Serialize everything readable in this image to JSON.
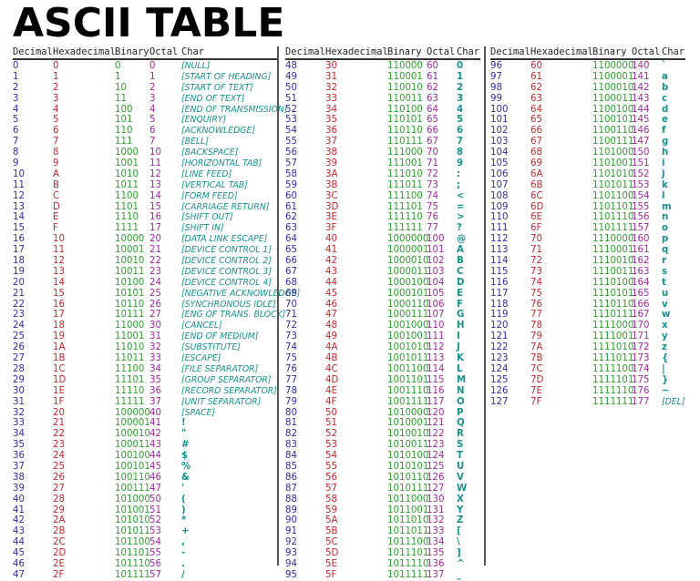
{
  "title": "ASCII TABLE",
  "headers": {
    "decimal": "Decimal",
    "hex": "Hexadecimal",
    "binary": "Binary",
    "octal": "Octal",
    "char": "Char"
  },
  "colors": {
    "decimal": "#2e2e9e",
    "hex": "#c0282d",
    "binary": "#2f9c2f",
    "octal": "#a0289e",
    "char": "#17908f"
  },
  "sections": [
    {
      "rows": [
        [
          "0",
          "0",
          "0",
          "0",
          "[NULL]"
        ],
        [
          "1",
          "1",
          "1",
          "1",
          "[START OF HEADING]"
        ],
        [
          "2",
          "2",
          "10",
          "2",
          "[START OF TEXT]"
        ],
        [
          "3",
          "3",
          "11",
          "3",
          "[END OF TEXT]"
        ],
        [
          "4",
          "4",
          "100",
          "4",
          "[END OF TRANSMISSION]"
        ],
        [
          "5",
          "5",
          "101",
          "5",
          "[ENQUIRY]"
        ],
        [
          "6",
          "6",
          "110",
          "6",
          "[ACKNOWLEDGE]"
        ],
        [
          "7",
          "7",
          "111",
          "7",
          "[BELL]"
        ],
        [
          "8",
          "8",
          "1000",
          "10",
          "[BACKSPACE]"
        ],
        [
          "9",
          "9",
          "1001",
          "11",
          "[HORIZONTAL TAB]"
        ],
        [
          "10",
          "A",
          "1010",
          "12",
          "[LINE FEED]"
        ],
        [
          "11",
          "B",
          "1011",
          "13",
          "[VERTICAL TAB]"
        ],
        [
          "12",
          "C",
          "1100",
          "14",
          "[FORM FEED]"
        ],
        [
          "13",
          "D",
          "1101",
          "15",
          "[CARRIAGE RETURN]"
        ],
        [
          "14",
          "E",
          "1110",
          "16",
          "[SHIFT OUT]"
        ],
        [
          "15",
          "F",
          "1111",
          "17",
          "[SHIFT IN]"
        ],
        [
          "16",
          "10",
          "10000",
          "20",
          "[DATA LINK ESCAPE]"
        ],
        [
          "17",
          "11",
          "10001",
          "21",
          "[DEVICE CONTROL 1]"
        ],
        [
          "18",
          "12",
          "10010",
          "22",
          "[DEVICE CONTROL 2]"
        ],
        [
          "19",
          "13",
          "10011",
          "23",
          "[DEVICE CONTROL 3]"
        ],
        [
          "20",
          "14",
          "10100",
          "24",
          "[DEVICE CONTROL 4]"
        ],
        [
          "21",
          "15",
          "10101",
          "25",
          "[NEGATIVE ACKNOWLEDGE]"
        ],
        [
          "22",
          "16",
          "10110",
          "26",
          "[SYNCHRONOUS IDLE]"
        ],
        [
          "23",
          "17",
          "10111",
          "27",
          "[ENG OF TRANS. BLOCK]"
        ],
        [
          "24",
          "18",
          "11000",
          "30",
          "[CANCEL]"
        ],
        [
          "25",
          "19",
          "11001",
          "31",
          "[END OF MEDIUM]"
        ],
        [
          "26",
          "1A",
          "11010",
          "32",
          "[SUBSTITUTE]"
        ],
        [
          "27",
          "1B",
          "11011",
          "33",
          "[ESCAPE]"
        ],
        [
          "28",
          "1C",
          "11100",
          "34",
          "[FILE SEPARATOR]"
        ],
        [
          "29",
          "1D",
          "11101",
          "35",
          "[GROUP SEPARATOR]"
        ],
        [
          "30",
          "1E",
          "11110",
          "36",
          "[RECORD SEPARATOR]"
        ],
        [
          "31",
          "1F",
          "11111",
          "37",
          "[UNIT SEPARATOR]"
        ],
        [
          "32",
          "20",
          "100000",
          "40",
          "[SPACE]"
        ],
        [
          "33",
          "21",
          "100001",
          "41",
          "!"
        ],
        [
          "34",
          "22",
          "100010",
          "42",
          "\""
        ],
        [
          "35",
          "23",
          "100011",
          "43",
          "#"
        ],
        [
          "36",
          "24",
          "100100",
          "44",
          "$"
        ],
        [
          "37",
          "25",
          "100101",
          "45",
          "%"
        ],
        [
          "38",
          "26",
          "100110",
          "46",
          "&"
        ],
        [
          "39",
          "27",
          "100111",
          "47",
          "'"
        ],
        [
          "40",
          "28",
          "101000",
          "50",
          "("
        ],
        [
          "41",
          "29",
          "101001",
          "51",
          ")"
        ],
        [
          "42",
          "2A",
          "101010",
          "52",
          "*"
        ],
        [
          "43",
          "2B",
          "101011",
          "53",
          "+"
        ],
        [
          "44",
          "2C",
          "101100",
          "54",
          ","
        ],
        [
          "45",
          "2D",
          "101101",
          "55",
          "-"
        ],
        [
          "46",
          "2E",
          "101110",
          "56",
          "."
        ],
        [
          "47",
          "2F",
          "101111",
          "57",
          "/"
        ]
      ]
    },
    {
      "rows": [
        [
          "48",
          "30",
          "110000",
          "60",
          "0"
        ],
        [
          "49",
          "31",
          "110001",
          "61",
          "1"
        ],
        [
          "50",
          "32",
          "110010",
          "62",
          "2"
        ],
        [
          "51",
          "33",
          "110011",
          "63",
          "3"
        ],
        [
          "52",
          "34",
          "110100",
          "64",
          "4"
        ],
        [
          "53",
          "35",
          "110101",
          "65",
          "5"
        ],
        [
          "54",
          "36",
          "110110",
          "66",
          "6"
        ],
        [
          "55",
          "37",
          "110111",
          "67",
          "7"
        ],
        [
          "56",
          "38",
          "111000",
          "70",
          "8"
        ],
        [
          "57",
          "39",
          "111001",
          "71",
          "9"
        ],
        [
          "58",
          "3A",
          "111010",
          "72",
          ":"
        ],
        [
          "59",
          "3B",
          "111011",
          "73",
          ";"
        ],
        [
          "60",
          "3C",
          "111100",
          "74",
          "<"
        ],
        [
          "61",
          "3D",
          "111101",
          "75",
          "="
        ],
        [
          "62",
          "3E",
          "111110",
          "76",
          ">"
        ],
        [
          "63",
          "3F",
          "111111",
          "77",
          "?"
        ],
        [
          "64",
          "40",
          "1000000",
          "100",
          "@"
        ],
        [
          "65",
          "41",
          "1000001",
          "101",
          "A"
        ],
        [
          "66",
          "42",
          "1000010",
          "102",
          "B"
        ],
        [
          "67",
          "43",
          "1000011",
          "103",
          "C"
        ],
        [
          "68",
          "44",
          "1000100",
          "104",
          "D"
        ],
        [
          "69",
          "45",
          "1000101",
          "105",
          "E"
        ],
        [
          "70",
          "46",
          "1000110",
          "106",
          "F"
        ],
        [
          "71",
          "47",
          "1000111",
          "107",
          "G"
        ],
        [
          "72",
          "48",
          "1001000",
          "110",
          "H"
        ],
        [
          "73",
          "49",
          "1001001",
          "111",
          "I"
        ],
        [
          "74",
          "4A",
          "1001010",
          "112",
          "J"
        ],
        [
          "75",
          "4B",
          "1001011",
          "113",
          "K"
        ],
        [
          "76",
          "4C",
          "1001100",
          "114",
          "L"
        ],
        [
          "77",
          "4D",
          "1001101",
          "115",
          "M"
        ],
        [
          "78",
          "4E",
          "1001110",
          "116",
          "N"
        ],
        [
          "79",
          "4F",
          "1001111",
          "117",
          "O"
        ],
        [
          "80",
          "50",
          "1010000",
          "120",
          "P"
        ],
        [
          "81",
          "51",
          "1010001",
          "121",
          "Q"
        ],
        [
          "82",
          "52",
          "1010010",
          "122",
          "R"
        ],
        [
          "83",
          "53",
          "1010011",
          "123",
          "S"
        ],
        [
          "84",
          "54",
          "1010100",
          "124",
          "T"
        ],
        [
          "85",
          "55",
          "1010101",
          "125",
          "U"
        ],
        [
          "86",
          "56",
          "1010110",
          "126",
          "V"
        ],
        [
          "87",
          "57",
          "1010111",
          "127",
          "W"
        ],
        [
          "88",
          "58",
          "1011000",
          "130",
          "X"
        ],
        [
          "89",
          "59",
          "1011001",
          "131",
          "Y"
        ],
        [
          "90",
          "5A",
          "1011010",
          "132",
          "Z"
        ],
        [
          "91",
          "5B",
          "1011011",
          "133",
          "["
        ],
        [
          "92",
          "5C",
          "1011100",
          "134",
          "\\"
        ],
        [
          "93",
          "5D",
          "1011101",
          "135",
          "]"
        ],
        [
          "94",
          "5E",
          "1011110",
          "136",
          "^"
        ],
        [
          "95",
          "5F",
          "1011111",
          "137",
          "_"
        ]
      ]
    },
    {
      "rows": [
        [
          "96",
          "60",
          "1100000",
          "140",
          "`"
        ],
        [
          "97",
          "61",
          "1100001",
          "141",
          "a"
        ],
        [
          "98",
          "62",
          "1100010",
          "142",
          "b"
        ],
        [
          "99",
          "63",
          "1100011",
          "143",
          "c"
        ],
        [
          "100",
          "64",
          "1100100",
          "144",
          "d"
        ],
        [
          "101",
          "65",
          "1100101",
          "145",
          "e"
        ],
        [
          "102",
          "66",
          "1100110",
          "146",
          "f"
        ],
        [
          "103",
          "67",
          "1100111",
          "147",
          "g"
        ],
        [
          "104",
          "68",
          "1101000",
          "150",
          "h"
        ],
        [
          "105",
          "69",
          "1101001",
          "151",
          "i"
        ],
        [
          "106",
          "6A",
          "1101010",
          "152",
          "j"
        ],
        [
          "107",
          "6B",
          "1101011",
          "153",
          "k"
        ],
        [
          "108",
          "6C",
          "1101100",
          "154",
          "l"
        ],
        [
          "109",
          "6D",
          "1101101",
          "155",
          "m"
        ],
        [
          "110",
          "6E",
          "1101110",
          "156",
          "n"
        ],
        [
          "111",
          "6F",
          "1101111",
          "157",
          "o"
        ],
        [
          "112",
          "70",
          "1110000",
          "160",
          "p"
        ],
        [
          "113",
          "71",
          "1110001",
          "161",
          "q"
        ],
        [
          "114",
          "72",
          "1110010",
          "162",
          "r"
        ],
        [
          "115",
          "73",
          "1110011",
          "163",
          "s"
        ],
        [
          "116",
          "74",
          "1110100",
          "164",
          "t"
        ],
        [
          "117",
          "75",
          "1110101",
          "165",
          "u"
        ],
        [
          "118",
          "76",
          "1110110",
          "166",
          "v"
        ],
        [
          "119",
          "77",
          "1110111",
          "167",
          "w"
        ],
        [
          "120",
          "78",
          "1111000",
          "170",
          "x"
        ],
        [
          "121",
          "79",
          "1111001",
          "171",
          "y"
        ],
        [
          "122",
          "7A",
          "1111010",
          "172",
          "z"
        ],
        [
          "123",
          "7B",
          "1111011",
          "173",
          "{"
        ],
        [
          "124",
          "7C",
          "1111100",
          "174",
          "|"
        ],
        [
          "125",
          "7D",
          "1111101",
          "175",
          "}"
        ],
        [
          "126",
          "7E",
          "1111110",
          "176",
          "~"
        ],
        [
          "127",
          "7F",
          "1111111",
          "177",
          "[DEL]"
        ]
      ]
    }
  ]
}
